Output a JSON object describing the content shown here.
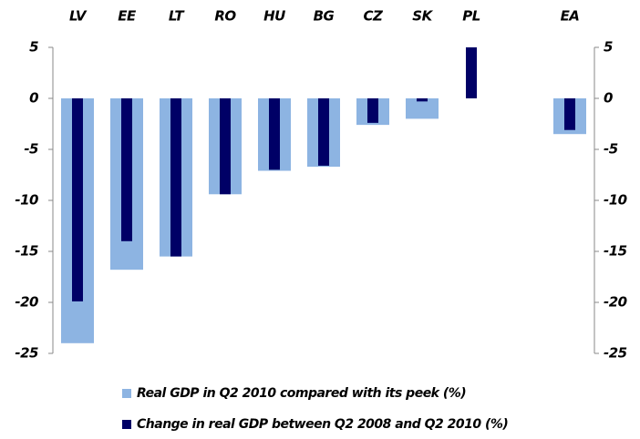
{
  "chart_data": {
    "type": "bar",
    "categories": [
      "LV",
      "EE",
      "LT",
      "RO",
      "HU",
      "BG",
      "CZ",
      "SK",
      "PL",
      null,
      "EA"
    ],
    "series": [
      {
        "name": "Real GDP in Q2 2010 compared with its peek (%)",
        "color": "#8db4e2",
        "values": [
          -24.0,
          -16.8,
          -15.5,
          -9.4,
          -7.1,
          -6.7,
          -2.6,
          -2.0,
          null,
          null,
          -3.5
        ]
      },
      {
        "name": "Change in real GDP between Q2 2008 and Q2 2010  (%)",
        "color": "#000066",
        "values": [
          -19.9,
          -14.0,
          -15.5,
          -9.4,
          -7.0,
          -6.6,
          -2.4,
          -0.3,
          5.0,
          null,
          -3.1
        ]
      }
    ],
    "ylim": [
      -25,
      5
    ],
    "yticks": [
      5,
      0,
      -5,
      -10,
      -15,
      -20,
      -25
    ],
    "y2lim": [
      -25,
      5
    ],
    "y2ticks": [
      5,
      0,
      -5,
      -10,
      -15,
      -20,
      -25
    ],
    "grid": false
  }
}
